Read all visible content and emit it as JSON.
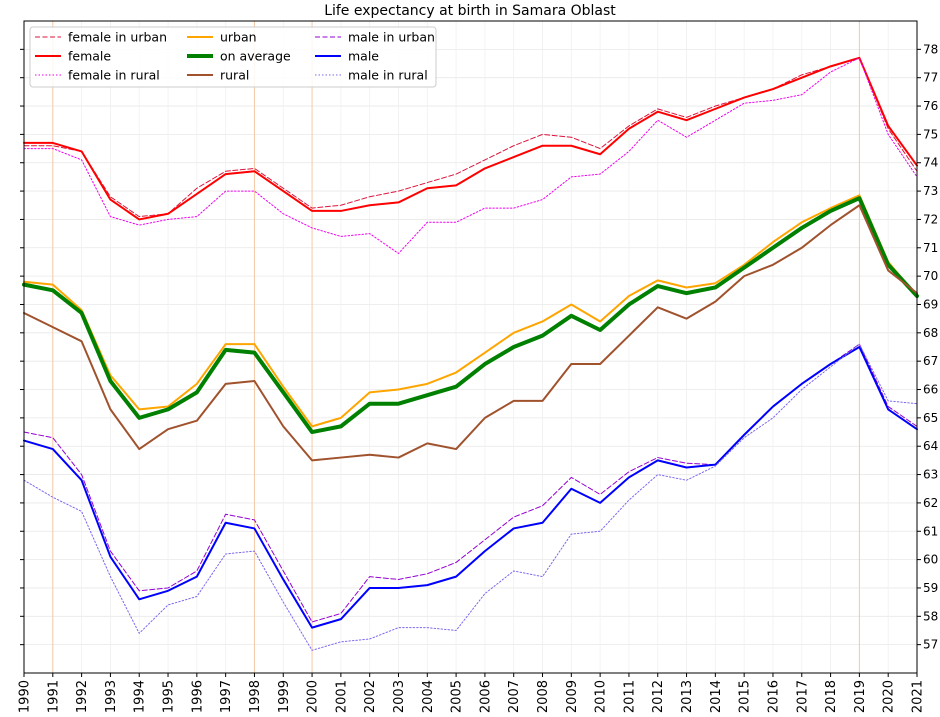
{
  "chart_data": {
    "type": "line",
    "title": "Life expectancy at birth in Samara Oblast",
    "xlabel": "",
    "ylabel": "",
    "xlim": [
      1990,
      2021
    ],
    "ylim": [
      56,
      79
    ],
    "grid": true,
    "legend_position": "top-left",
    "x": [
      1990,
      1991,
      1992,
      1993,
      1994,
      1995,
      1996,
      1997,
      1998,
      1999,
      2000,
      2001,
      2002,
      2003,
      2004,
      2005,
      2006,
      2007,
      2008,
      2009,
      2010,
      2011,
      2012,
      2013,
      2014,
      2015,
      2016,
      2017,
      2018,
      2019,
      2020,
      2021
    ],
    "x_ticks": [
      "1990",
      "1991",
      "1992",
      "1993",
      "1994",
      "1995",
      "1996",
      "1997",
      "1998",
      "1999",
      "2000",
      "2001",
      "2002",
      "2003",
      "2004",
      "2005",
      "2006",
      "2007",
      "2008",
      "2009",
      "2010",
      "2011",
      "2012",
      "2013",
      "2014",
      "2015",
      "2016",
      "2017",
      "2018",
      "2019",
      "2020",
      "2021"
    ],
    "y_ticks": [
      "57",
      "58",
      "59",
      "60",
      "61",
      "62",
      "63",
      "64",
      "65",
      "66",
      "67",
      "68",
      "69",
      "70",
      "71",
      "72",
      "73",
      "74",
      "75",
      "76",
      "77",
      "78"
    ],
    "highlight_years": [
      1991,
      1998,
      2000,
      2019
    ],
    "series": [
      {
        "name": "female in urban",
        "color": "#dc143c",
        "dash": "dashed",
        "width": 1,
        "values": [
          74.6,
          74.6,
          74.4,
          72.8,
          72.1,
          72.2,
          73.1,
          73.7,
          73.8,
          73.1,
          72.4,
          72.5,
          72.8,
          73.0,
          73.3,
          73.6,
          74.1,
          74.6,
          75.0,
          74.9,
          74.5,
          75.3,
          75.9,
          75.6,
          76.0,
          76.3,
          76.6,
          77.1,
          77.4,
          77.7,
          75.2,
          73.7
        ]
      },
      {
        "name": "female",
        "color": "#ff0000",
        "dash": "solid",
        "width": 2,
        "values": [
          74.7,
          74.7,
          74.4,
          72.7,
          72.0,
          72.2,
          72.9,
          73.6,
          73.7,
          73.0,
          72.3,
          72.3,
          72.5,
          72.6,
          73.1,
          73.2,
          73.8,
          74.2,
          74.6,
          74.6,
          74.3,
          75.2,
          75.8,
          75.5,
          75.9,
          76.3,
          76.6,
          77.0,
          77.4,
          77.7,
          75.3,
          73.9
        ]
      },
      {
        "name": "female in rural",
        "color": "#ee00ee",
        "dash": "dotted",
        "width": 1,
        "values": [
          74.5,
          74.5,
          74.1,
          72.1,
          71.8,
          72.0,
          72.1,
          73.0,
          73.0,
          72.2,
          71.7,
          71.4,
          71.5,
          70.8,
          71.9,
          71.9,
          72.4,
          72.4,
          72.7,
          73.5,
          73.6,
          74.4,
          75.5,
          74.9,
          75.5,
          76.1,
          76.2,
          76.4,
          77.2,
          77.7,
          75.0,
          73.5
        ]
      },
      {
        "name": "urban",
        "color": "#ffa500",
        "dash": "solid",
        "width": 2,
        "values": [
          69.8,
          69.7,
          68.8,
          66.5,
          65.3,
          65.4,
          66.2,
          67.6,
          67.6,
          66.1,
          64.7,
          65.0,
          65.9,
          66.0,
          66.2,
          66.6,
          67.3,
          68.0,
          68.4,
          69.0,
          68.4,
          69.3,
          69.85,
          69.6,
          69.75,
          70.4,
          71.2,
          71.9,
          72.4,
          72.85,
          70.5,
          69.3
        ]
      },
      {
        "name": "on average",
        "color": "#008000",
        "dash": "solid",
        "width": 4,
        "values": [
          69.7,
          69.5,
          68.7,
          66.3,
          65.0,
          65.3,
          65.9,
          67.4,
          67.3,
          65.9,
          64.5,
          64.7,
          65.5,
          65.5,
          65.8,
          66.1,
          66.9,
          67.5,
          67.9,
          68.6,
          68.1,
          69.0,
          69.65,
          69.4,
          69.6,
          70.3,
          71.0,
          71.7,
          72.3,
          72.75,
          70.4,
          69.3
        ]
      },
      {
        "name": "rural",
        "color": "#a0522d",
        "dash": "solid",
        "width": 2,
        "values": [
          68.7,
          68.2,
          67.7,
          65.3,
          63.9,
          64.6,
          64.9,
          66.2,
          66.3,
          64.7,
          63.5,
          63.6,
          63.7,
          63.6,
          64.1,
          63.9,
          65.0,
          65.6,
          65.6,
          66.9,
          66.9,
          67.9,
          68.9,
          68.5,
          69.1,
          70.0,
          70.4,
          71.0,
          71.8,
          72.5,
          70.2,
          69.4
        ]
      },
      {
        "name": "male in urban",
        "color": "#9400d3",
        "dash": "dashed",
        "width": 1,
        "values": [
          64.5,
          64.3,
          63.0,
          60.3,
          58.9,
          59.0,
          59.6,
          61.6,
          61.4,
          59.6,
          57.8,
          58.1,
          59.4,
          59.3,
          59.5,
          59.9,
          60.7,
          61.5,
          61.9,
          62.9,
          62.3,
          63.1,
          63.6,
          63.4,
          63.35,
          64.4,
          65.4,
          66.2,
          66.9,
          67.6,
          65.4,
          64.7
        ]
      },
      {
        "name": "male",
        "color": "#0000ff",
        "dash": "solid",
        "width": 2,
        "values": [
          64.2,
          63.9,
          62.8,
          60.1,
          58.6,
          58.9,
          59.4,
          61.3,
          61.1,
          59.3,
          57.6,
          57.9,
          59.0,
          59.0,
          59.1,
          59.4,
          60.3,
          61.1,
          61.3,
          62.5,
          62.0,
          62.9,
          63.5,
          63.25,
          63.35,
          64.4,
          65.4,
          66.2,
          66.9,
          67.5,
          65.3,
          64.6
        ]
      },
      {
        "name": "male in rural",
        "color": "#7b68ee",
        "dash": "dotted",
        "width": 1,
        "values": [
          62.8,
          62.2,
          61.7,
          59.4,
          57.4,
          58.4,
          58.7,
          60.2,
          60.3,
          58.5,
          56.8,
          57.1,
          57.2,
          57.6,
          57.6,
          57.5,
          58.8,
          59.6,
          59.4,
          60.9,
          61.0,
          62.1,
          63.0,
          62.8,
          63.3,
          64.3,
          65.0,
          66.0,
          66.8,
          67.6,
          65.6,
          65.5
        ]
      }
    ],
    "legend": [
      [
        "female in urban",
        "female",
        "female in rural"
      ],
      [
        "urban",
        "on average",
        "rural"
      ],
      [
        "male in urban",
        "male",
        "male in rural"
      ]
    ]
  }
}
